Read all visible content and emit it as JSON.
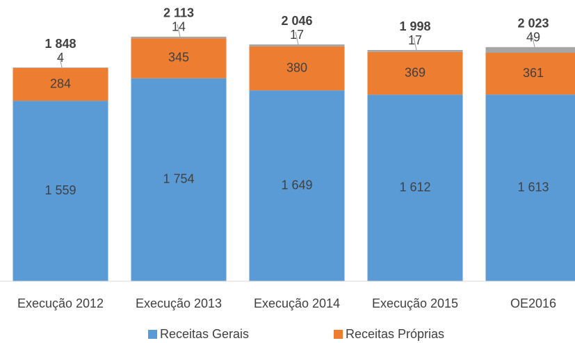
{
  "chart_data": {
    "type": "stacked_bar",
    "categories": [
      "Execução 2012",
      "Execução 2013",
      "Execução 2014",
      "Execução 2015",
      "OE2016"
    ],
    "series": [
      {
        "name": "Receitas Gerais",
        "color": "#5b9bd5",
        "values": [
          1559,
          1754,
          1649,
          1612,
          1613
        ],
        "value_labels": [
          "1 559",
          "1 754",
          "1 649",
          "1 612",
          "1 613"
        ]
      },
      {
        "name": "Receitas Próprias",
        "color": "#ed7d31",
        "values": [
          284,
          345,
          380,
          369,
          361
        ]
      },
      {
        "color": "#a5a5a5",
        "values": [
          4,
          14,
          17,
          17,
          49
        ]
      }
    ],
    "totals": [
      1848,
      2113,
      2046,
      1998,
      2023
    ],
    "total_labels": [
      "1 848",
      "2 113",
      "2 046",
      "1 998",
      "2 023"
    ],
    "ylim": [
      0,
      2430
    ]
  }
}
